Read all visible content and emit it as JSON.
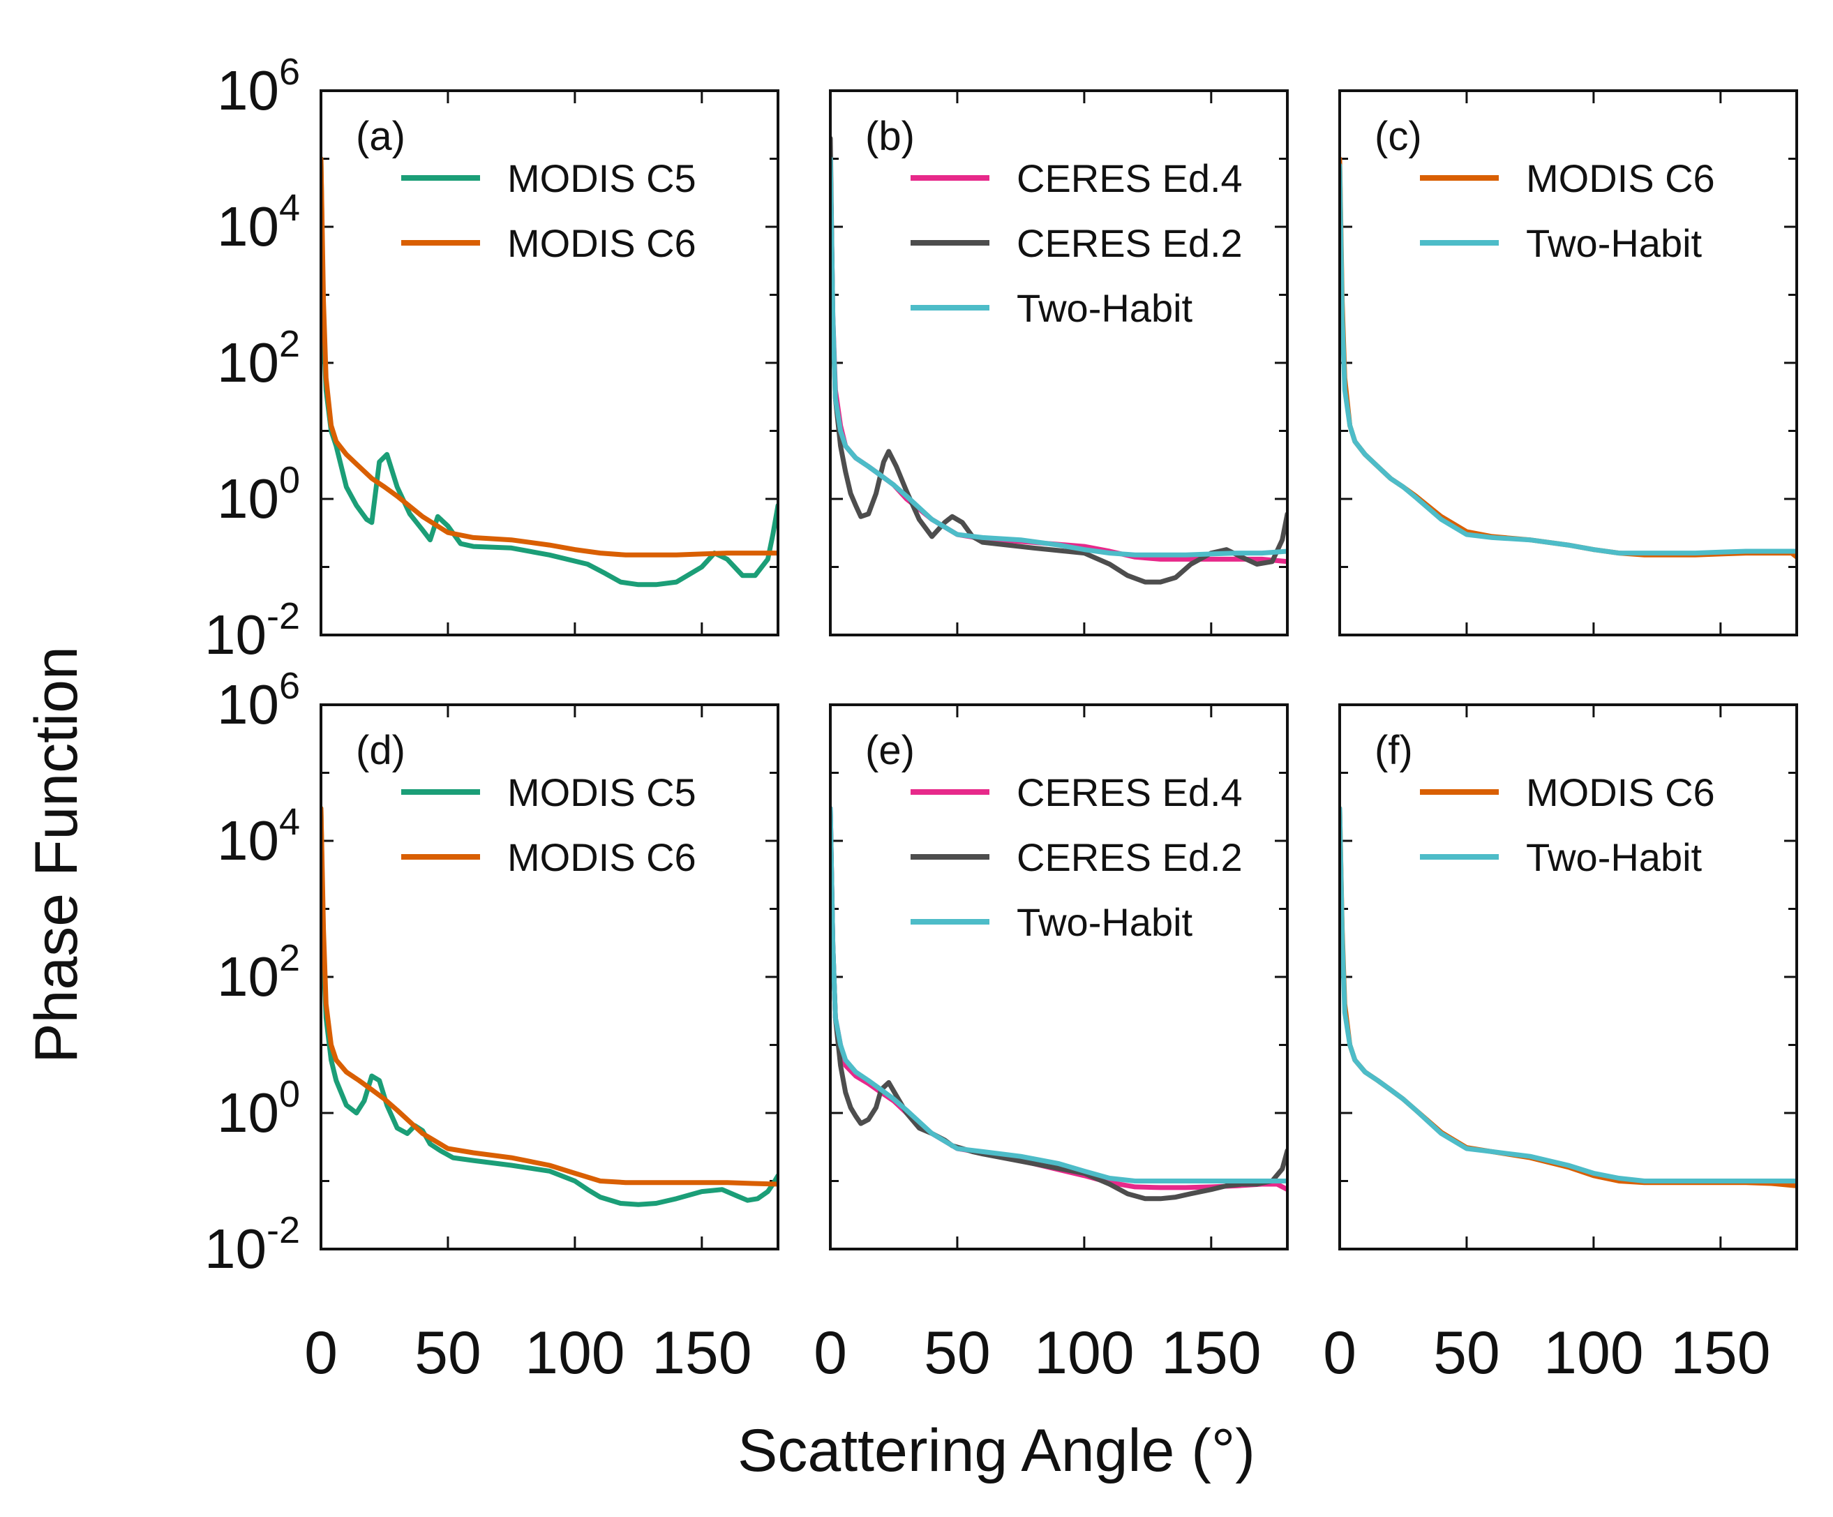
{
  "figure": {
    "ylabel": "Phase Function",
    "xlabel": "Scattering Angle (°)",
    "x_tick_labels": [
      "0",
      "50",
      "100",
      "150"
    ],
    "y_tick_labels": [
      {
        "base": "10",
        "exp": "6"
      },
      {
        "base": "10",
        "exp": "4"
      },
      {
        "base": "10",
        "exp": "2"
      },
      {
        "base": "10",
        "exp": "0"
      },
      {
        "base": "10",
        "exp": "-2"
      }
    ]
  },
  "colors": {
    "modis_c5": "#1b9e77",
    "modis_c6": "#d95f02",
    "ceres_ed4": "#e7298a",
    "ceres_ed2": "#4d4d4d",
    "two_habit": "#4dbcc8"
  },
  "chart_data": [
    {
      "type": "line",
      "panel": "(a)",
      "xlim": [
        0,
        180
      ],
      "ylim": [
        0.01,
        1000000
      ],
      "yscale": "log",
      "series": [
        {
          "name": "MODIS C5",
          "color": "#1b9e77",
          "x": [
            0,
            1,
            2,
            4,
            6,
            10,
            14,
            18,
            20,
            23,
            26,
            30,
            35,
            40,
            43,
            46,
            50,
            55,
            60,
            75,
            90,
            105,
            112,
            118,
            125,
            132,
            140,
            150,
            155,
            160,
            166,
            171,
            176,
            178,
            180
          ],
          "y": [
            100000,
            300,
            40,
            10,
            6,
            1.5,
            0.8,
            0.5,
            0.45,
            3.5,
            4.5,
            1.5,
            0.6,
            0.35,
            0.25,
            0.55,
            0.4,
            0.22,
            0.2,
            0.19,
            0.15,
            0.11,
            0.08,
            0.06,
            0.055,
            0.055,
            0.06,
            0.1,
            0.16,
            0.13,
            0.075,
            0.075,
            0.13,
            0.3,
            0.8
          ]
        },
        {
          "name": "MODIS C6",
          "color": "#d95f02",
          "x": [
            0,
            1,
            2,
            4,
            6,
            10,
            15,
            20,
            25,
            30,
            40,
            50,
            60,
            75,
            90,
            100,
            110,
            120,
            130,
            140,
            150,
            160,
            170,
            180
          ],
          "y": [
            100000,
            800,
            60,
            12,
            7,
            4.5,
            3,
            2,
            1.5,
            1.1,
            0.55,
            0.32,
            0.27,
            0.25,
            0.21,
            0.18,
            0.16,
            0.15,
            0.15,
            0.15,
            0.155,
            0.16,
            0.16,
            0.16
          ]
        }
      ]
    },
    {
      "type": "line",
      "panel": "(b)",
      "xlim": [
        0,
        180
      ],
      "ylim": [
        0.01,
        1000000
      ],
      "yscale": "log",
      "series": [
        {
          "name": "CERES Ed.4",
          "color": "#e7298a",
          "x": [
            0,
            1,
            2,
            4,
            6,
            10,
            15,
            20,
            25,
            30,
            40,
            50,
            60,
            80,
            100,
            110,
            120,
            130,
            140,
            150,
            160,
            170,
            180
          ],
          "y": [
            100000,
            500,
            40,
            12,
            6,
            4,
            3,
            2.2,
            1.6,
            1,
            0.5,
            0.3,
            0.26,
            0.23,
            0.2,
            0.17,
            0.14,
            0.13,
            0.13,
            0.13,
            0.13,
            0.13,
            0.12
          ]
        },
        {
          "name": "CERES Ed.2",
          "color": "#4d4d4d",
          "x": [
            0,
            1,
            2,
            4,
            6,
            8,
            10,
            12,
            15,
            18,
            21,
            23,
            26,
            30,
            35,
            40,
            45,
            48,
            52,
            56,
            60,
            80,
            100,
            110,
            117,
            124,
            130,
            136,
            142,
            150,
            156,
            162,
            168,
            174,
            178,
            180
          ],
          "y": [
            200000,
            400,
            30,
            6,
            2.5,
            1.2,
            0.8,
            0.55,
            0.6,
            1.2,
            3.5,
            5,
            3,
            1.3,
            0.5,
            0.28,
            0.45,
            0.55,
            0.45,
            0.28,
            0.23,
            0.19,
            0.16,
            0.11,
            0.075,
            0.06,
            0.06,
            0.07,
            0.11,
            0.16,
            0.18,
            0.14,
            0.11,
            0.12,
            0.25,
            0.6
          ]
        },
        {
          "name": "Two-Habit",
          "color": "#4dbcc8",
          "x": [
            0,
            1,
            2,
            4,
            6,
            10,
            15,
            20,
            25,
            30,
            40,
            50,
            60,
            75,
            90,
            100,
            110,
            120,
            130,
            140,
            150,
            160,
            170,
            180
          ],
          "y": [
            100000,
            500,
            30,
            10,
            6,
            4,
            3,
            2.2,
            1.6,
            1.1,
            0.5,
            0.3,
            0.27,
            0.25,
            0.21,
            0.18,
            0.16,
            0.15,
            0.15,
            0.15,
            0.155,
            0.16,
            0.16,
            0.17
          ]
        }
      ]
    },
    {
      "type": "line",
      "panel": "(c)",
      "xlim": [
        0,
        180
      ],
      "ylim": [
        0.01,
        1000000
      ],
      "yscale": "log",
      "series": [
        {
          "name": "MODIS C6",
          "color": "#d95f02",
          "x": [
            0,
            1,
            2,
            4,
            6,
            10,
            15,
            20,
            25,
            30,
            40,
            50,
            60,
            75,
            90,
            100,
            110,
            120,
            130,
            140,
            150,
            160,
            170,
            178,
            180
          ],
          "y": [
            100000,
            800,
            60,
            12,
            7,
            4.5,
            3,
            2,
            1.5,
            1.1,
            0.55,
            0.33,
            0.28,
            0.25,
            0.21,
            0.18,
            0.16,
            0.15,
            0.15,
            0.15,
            0.155,
            0.16,
            0.16,
            0.16,
            0.14
          ]
        },
        {
          "name": "Two-Habit",
          "color": "#4dbcc8",
          "x": [
            0,
            1,
            2,
            4,
            6,
            10,
            15,
            20,
            25,
            30,
            40,
            50,
            60,
            75,
            90,
            100,
            110,
            120,
            130,
            140,
            150,
            160,
            170,
            180
          ],
          "y": [
            80000,
            500,
            40,
            12,
            7,
            4.5,
            3,
            2,
            1.5,
            1.05,
            0.5,
            0.3,
            0.27,
            0.25,
            0.21,
            0.18,
            0.16,
            0.16,
            0.16,
            0.16,
            0.165,
            0.17,
            0.17,
            0.17
          ]
        }
      ]
    },
    {
      "type": "line",
      "panel": "(d)",
      "xlim": [
        0,
        180
      ],
      "ylim": [
        0.01,
        1000000
      ],
      "yscale": "log",
      "series": [
        {
          "name": "MODIS C5",
          "color": "#1b9e77",
          "x": [
            0,
            1,
            2,
            4,
            6,
            10,
            14,
            17,
            20,
            23,
            26,
            30,
            34,
            37,
            40,
            43,
            47,
            52,
            60,
            75,
            90,
            100,
            105,
            110,
            118,
            125,
            132,
            140,
            150,
            158,
            164,
            168,
            172,
            176,
            178,
            180
          ],
          "y": [
            30000,
            200,
            25,
            6,
            3,
            1.3,
            1,
            1.5,
            3.5,
            3,
            1.3,
            0.6,
            0.5,
            0.65,
            0.55,
            0.35,
            0.28,
            0.22,
            0.2,
            0.17,
            0.14,
            0.1,
            0.075,
            0.058,
            0.047,
            0.045,
            0.047,
            0.055,
            0.07,
            0.075,
            0.06,
            0.052,
            0.055,
            0.07,
            0.09,
            0.12
          ]
        },
        {
          "name": "MODIS C6",
          "color": "#d95f02",
          "x": [
            0,
            1,
            2,
            4,
            6,
            10,
            15,
            20,
            25,
            30,
            40,
            50,
            60,
            75,
            90,
            100,
            110,
            120,
            130,
            140,
            150,
            160,
            170,
            180
          ],
          "y": [
            30000,
            500,
            40,
            10,
            6,
            4,
            3,
            2.2,
            1.6,
            1.1,
            0.5,
            0.3,
            0.26,
            0.22,
            0.17,
            0.13,
            0.1,
            0.095,
            0.095,
            0.095,
            0.095,
            0.095,
            0.092,
            0.09
          ]
        }
      ]
    },
    {
      "type": "line",
      "panel": "(e)",
      "xlim": [
        0,
        180
      ],
      "ylim": [
        0.01,
        1000000
      ],
      "yscale": "log",
      "series": [
        {
          "name": "CERES Ed.4",
          "color": "#e7298a",
          "x": [
            0,
            1,
            2,
            4,
            6,
            10,
            15,
            20,
            25,
            30,
            40,
            50,
            60,
            80,
            100,
            110,
            120,
            130,
            140,
            150,
            160,
            170,
            176,
            180
          ],
          "y": [
            30000,
            300,
            25,
            10,
            5,
            3.5,
            2.7,
            2,
            1.5,
            1,
            0.5,
            0.3,
            0.26,
            0.18,
            0.12,
            0.095,
            0.082,
            0.08,
            0.08,
            0.082,
            0.085,
            0.09,
            0.09,
            0.075
          ]
        },
        {
          "name": "CERES Ed.2",
          "color": "#4d4d4d",
          "x": [
            0,
            1,
            2,
            4,
            6,
            8,
            10,
            12,
            15,
            18,
            20,
            23,
            26,
            30,
            35,
            40,
            45,
            48,
            52,
            56,
            60,
            80,
            100,
            110,
            117,
            124,
            130,
            136,
            142,
            150,
            156,
            162,
            168,
            174,
            178,
            180
          ],
          "y": [
            30000,
            300,
            25,
            5,
            2,
            1.2,
            0.9,
            0.7,
            0.8,
            1.2,
            2.2,
            2.8,
            1.8,
            1,
            0.6,
            0.5,
            0.4,
            0.33,
            0.3,
            0.27,
            0.25,
            0.18,
            0.13,
            0.09,
            0.065,
            0.055,
            0.055,
            0.058,
            0.065,
            0.075,
            0.085,
            0.09,
            0.09,
            0.1,
            0.15,
            0.28
          ]
        },
        {
          "name": "Two-Habit",
          "color": "#4dbcc8",
          "x": [
            0,
            1,
            2,
            4,
            6,
            10,
            15,
            20,
            25,
            30,
            40,
            50,
            60,
            75,
            90,
            100,
            110,
            120,
            130,
            140,
            150,
            160,
            170,
            180
          ],
          "y": [
            30000,
            300,
            25,
            10,
            6,
            4,
            3,
            2.2,
            1.6,
            1.1,
            0.5,
            0.3,
            0.27,
            0.23,
            0.18,
            0.14,
            0.11,
            0.1,
            0.1,
            0.1,
            0.1,
            0.1,
            0.1,
            0.1
          ]
        }
      ]
    },
    {
      "type": "line",
      "panel": "(f)",
      "xlim": [
        0,
        180
      ],
      "ylim": [
        0.01,
        1000000
      ],
      "yscale": "log",
      "series": [
        {
          "name": "MODIS C6",
          "color": "#d95f02",
          "x": [
            0,
            1,
            2,
            4,
            6,
            10,
            15,
            20,
            25,
            30,
            40,
            50,
            60,
            75,
            90,
            100,
            110,
            120,
            130,
            140,
            150,
            160,
            170,
            180
          ],
          "y": [
            30000,
            500,
            40,
            10,
            6,
            4,
            3,
            2.2,
            1.6,
            1.1,
            0.52,
            0.31,
            0.27,
            0.22,
            0.16,
            0.12,
            0.1,
            0.095,
            0.095,
            0.095,
            0.095,
            0.095,
            0.092,
            0.085
          ]
        },
        {
          "name": "Two-Habit",
          "color": "#4dbcc8",
          "x": [
            0,
            1,
            2,
            4,
            6,
            10,
            15,
            20,
            25,
            30,
            40,
            50,
            60,
            75,
            90,
            100,
            110,
            120,
            130,
            140,
            150,
            160,
            170,
            180
          ],
          "y": [
            30000,
            400,
            30,
            10,
            6,
            4,
            3,
            2.2,
            1.6,
            1.1,
            0.5,
            0.3,
            0.27,
            0.23,
            0.17,
            0.13,
            0.11,
            0.1,
            0.1,
            0.1,
            0.1,
            0.1,
            0.1,
            0.1
          ]
        }
      ]
    }
  ]
}
